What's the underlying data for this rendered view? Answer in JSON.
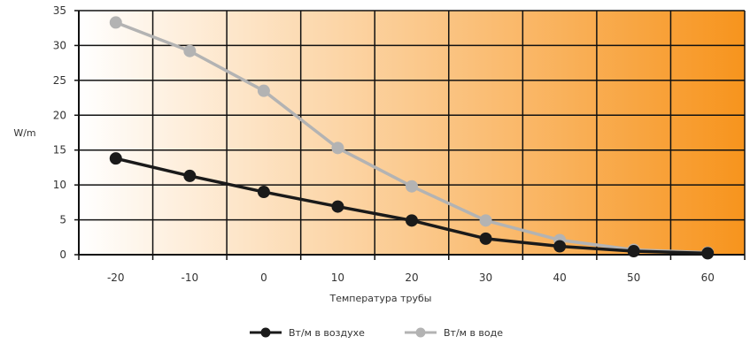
{
  "chart_data": {
    "type": "line",
    "xlabel": "Температура трубы",
    "ylabel": "W/m",
    "x": [
      -20,
      -10,
      0,
      10,
      20,
      30,
      40,
      50,
      60
    ],
    "x_tick_labels": [
      "-20",
      "-10",
      "0",
      "10",
      "20",
      "30",
      "40",
      "50",
      "60"
    ],
    "y_tick_labels": [
      "0",
      "5",
      "10",
      "15",
      "20",
      "25",
      "30",
      "35"
    ],
    "ylim": [
      0,
      35
    ],
    "grid": true,
    "legend_position": "bottom-center",
    "background": "horizontal gradient from white to orange",
    "series": [
      {
        "name": "Вт/м в воздухе",
        "color": "#1a1a1a",
        "values": [
          13.8,
          11.3,
          9.0,
          6.9,
          4.9,
          2.3,
          1.2,
          0.5,
          0.2
        ]
      },
      {
        "name": "Вт/м в воде",
        "color": "#b3b3b3",
        "values": [
          33.3,
          29.2,
          23.5,
          15.3,
          9.8,
          4.9,
          2.1,
          0.7,
          0.3
        ]
      }
    ]
  },
  "colors": {
    "gradient_start": "#ffffff",
    "gradient_end": "#f7941d",
    "grid": "#111111"
  }
}
